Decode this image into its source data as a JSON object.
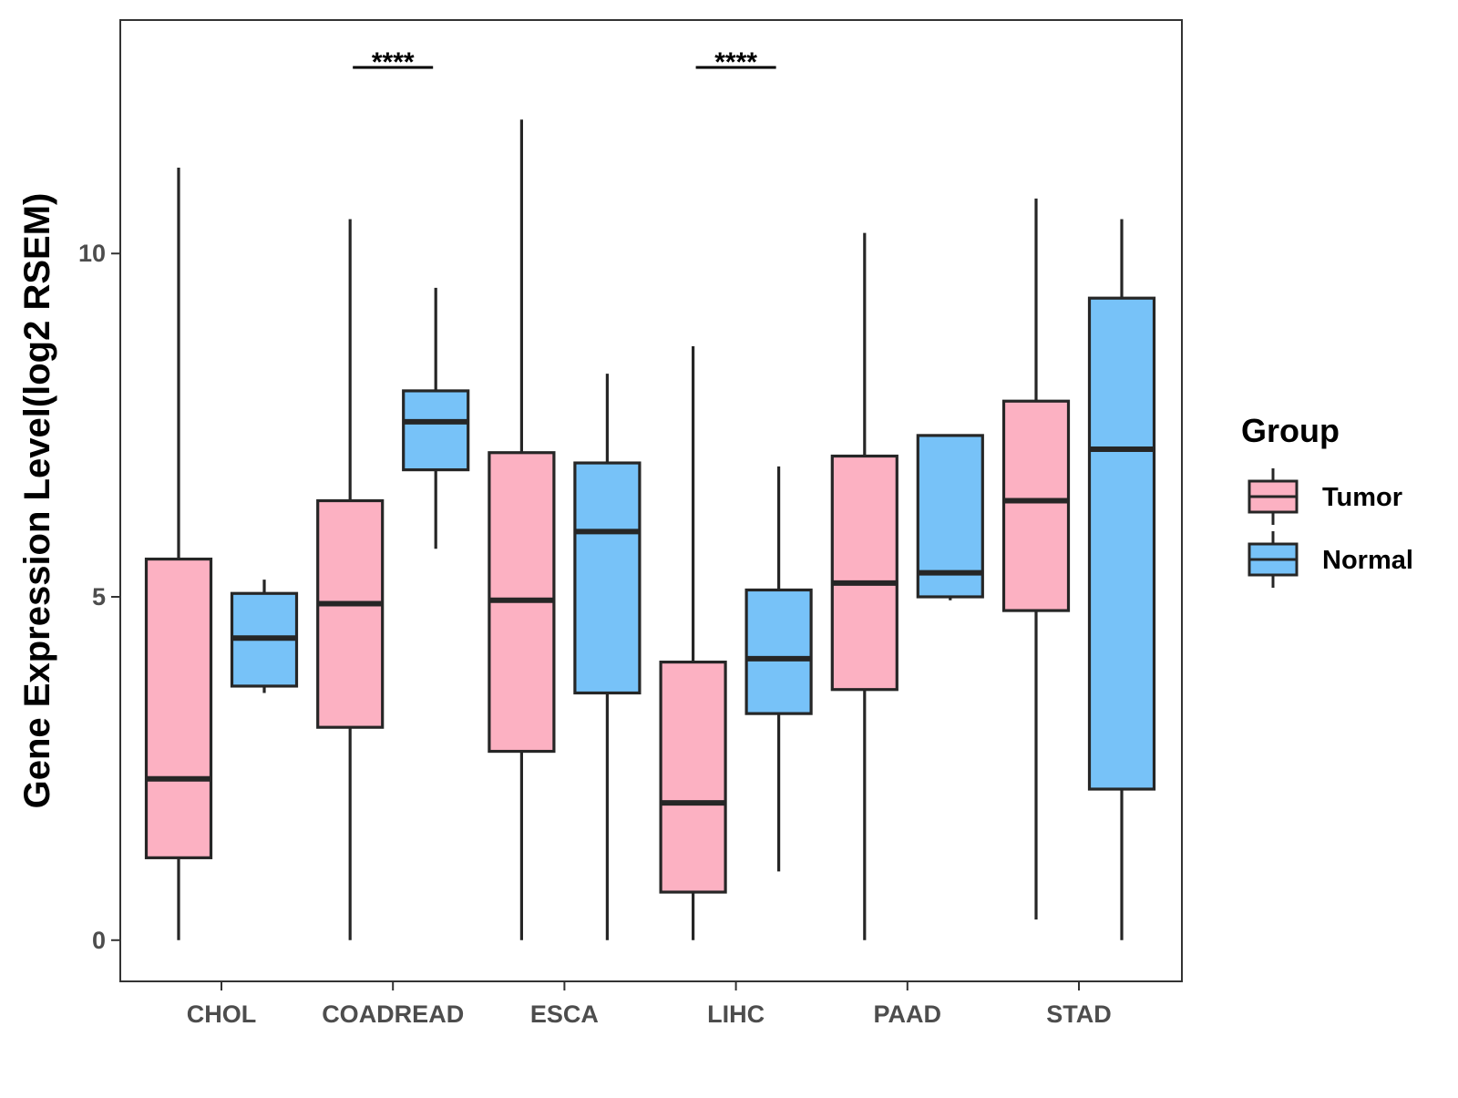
{
  "chart_data": {
    "type": "boxplot",
    "title": "",
    "xlabel": "",
    "ylabel": "Gene Expression Level(log2 RSEM)",
    "ylim": [
      -0.6,
      13.4
    ],
    "yticks": [
      0,
      5,
      10
    ],
    "grid": false,
    "categories": [
      "CHOL",
      "COADREAD",
      "ESCA",
      "LIHC",
      "PAAD",
      "STAD"
    ],
    "legend": {
      "title": "Group",
      "position": "right",
      "entries": [
        {
          "name": "Tumor",
          "color": "#fcb1c2"
        },
        {
          "name": "Normal",
          "color": "#77c2f8"
        }
      ]
    },
    "series": [
      {
        "name": "Tumor",
        "color": "#fcb1c2",
        "boxes": [
          {
            "category": "CHOL",
            "min": 0.0,
            "q1": 1.2,
            "median": 2.35,
            "q3": 5.55,
            "max": 11.25
          },
          {
            "category": "COADREAD",
            "min": 0.0,
            "q1": 3.1,
            "median": 4.9,
            "q3": 6.4,
            "max": 10.5
          },
          {
            "category": "ESCA",
            "min": 0.0,
            "q1": 2.75,
            "median": 4.95,
            "q3": 7.1,
            "max": 11.95
          },
          {
            "category": "LIHC",
            "min": 0.0,
            "q1": 0.7,
            "median": 2.0,
            "q3": 4.05,
            "max": 8.65
          },
          {
            "category": "PAAD",
            "min": 0.0,
            "q1": 3.65,
            "median": 5.2,
            "q3": 7.05,
            "max": 10.3
          },
          {
            "category": "STAD",
            "min": 0.3,
            "q1": 4.8,
            "median": 6.4,
            "q3": 7.85,
            "max": 10.8
          }
        ]
      },
      {
        "name": "Normal",
        "color": "#77c2f8",
        "boxes": [
          {
            "category": "CHOL",
            "min": 3.6,
            "q1": 3.7,
            "median": 4.4,
            "q3": 5.05,
            "max": 5.25
          },
          {
            "category": "COADREAD",
            "min": 5.7,
            "q1": 6.85,
            "median": 7.55,
            "q3": 8.0,
            "max": 9.5
          },
          {
            "category": "ESCA",
            "min": 0.0,
            "q1": 3.6,
            "median": 5.95,
            "q3": 6.95,
            "max": 8.25
          },
          {
            "category": "LIHC",
            "min": 1.0,
            "q1": 3.3,
            "median": 4.1,
            "q3": 5.1,
            "max": 6.9
          },
          {
            "category": "PAAD",
            "min": 4.95,
            "q1": 5.0,
            "median": 5.35,
            "q3": 7.35,
            "max": 7.35
          },
          {
            "category": "STAD",
            "min": 0.0,
            "q1": 2.2,
            "median": 7.15,
            "q3": 9.35,
            "max": 10.5
          }
        ]
      }
    ],
    "annotations": [
      {
        "category": "COADREAD",
        "text": "****"
      },
      {
        "category": "LIHC",
        "text": "****"
      }
    ]
  }
}
